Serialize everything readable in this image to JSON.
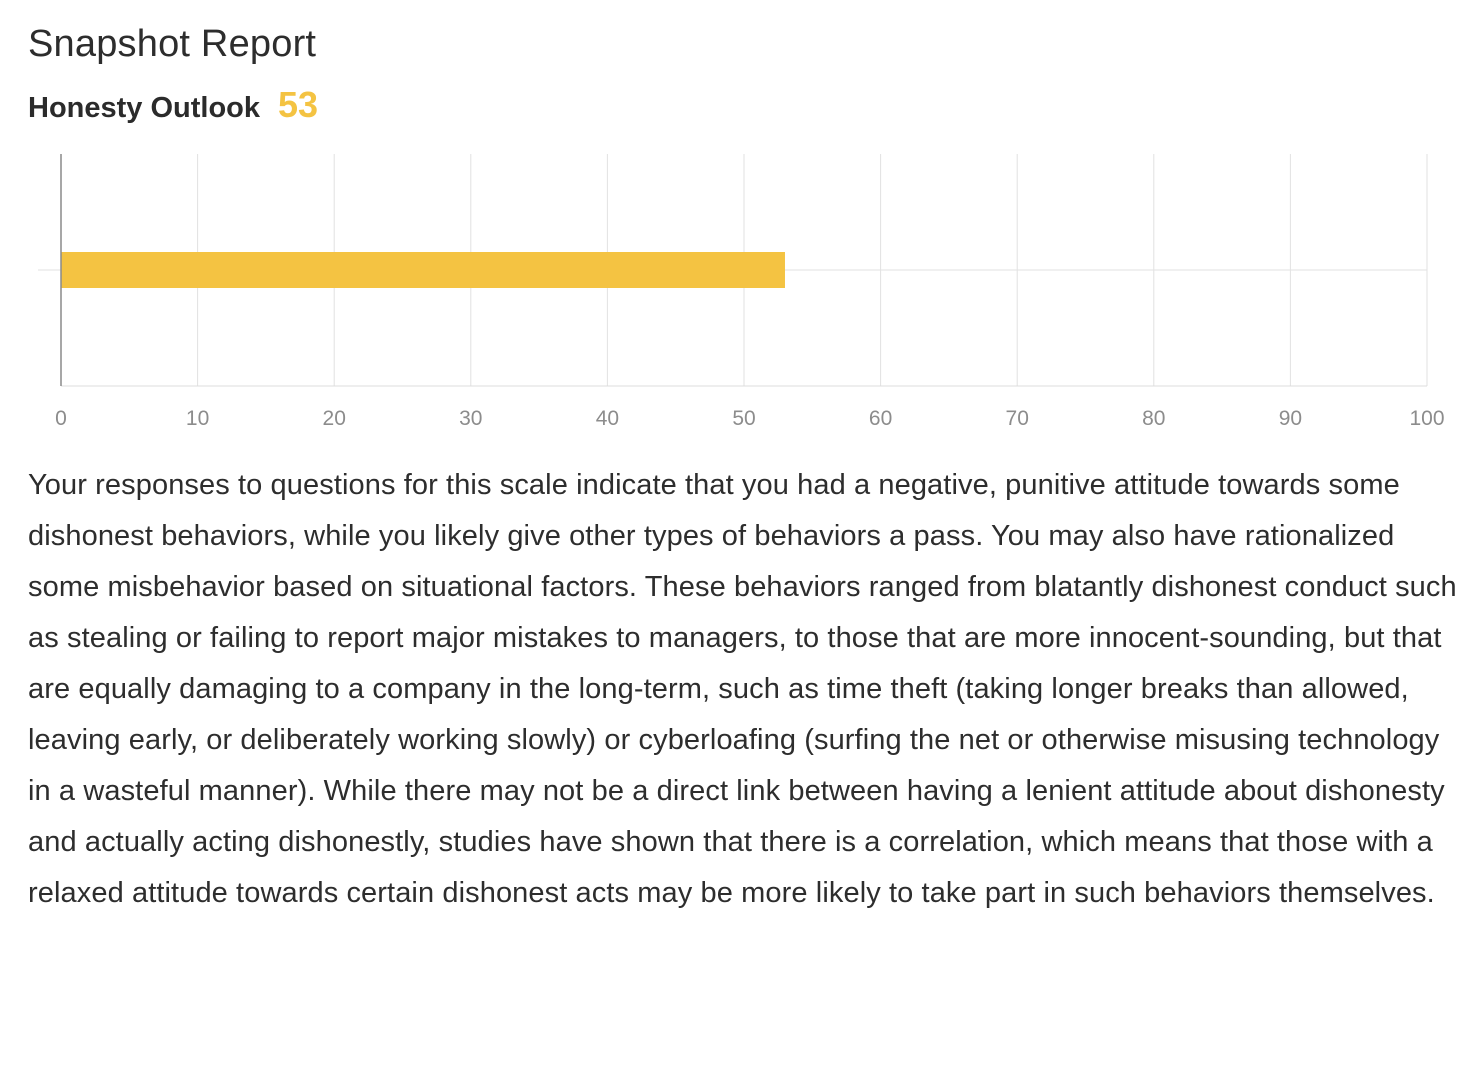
{
  "page": {
    "title": "Snapshot Report"
  },
  "scale": {
    "name": "Honesty Outlook",
    "score": "53",
    "accent_color": "#F4C342"
  },
  "chart_data": {
    "type": "bar",
    "orientation": "horizontal",
    "categories": [
      "Honesty Outlook"
    ],
    "values": [
      53
    ],
    "xlim": [
      0,
      100
    ],
    "xticks": [
      0,
      10,
      20,
      30,
      40,
      50,
      60,
      70,
      80,
      90,
      100
    ],
    "grid": true,
    "bar_color": "#F4C342"
  },
  "description": "Your responses to questions for this scale indicate that you had a negative, punitive attitude towards some dishonest behaviors, while you likely give other types of behaviors a pass. You may also have rationalized some misbehavior based on situational factors. These behaviors ranged from blatantly dishonest conduct such as stealing or failing to report major mistakes to managers, to those that are more innocent-sounding, but that are equally damaging to a company in the long-term, such as time theft (taking longer breaks than allowed, leaving early, or deliberately working slowly) or cyberloafing (surfing the net or otherwise misusing technology in a wasteful manner). While there may not be a direct link between having a lenient attitude about dishonesty and actually acting dishonestly, studies have shown that there is a correlation, which means that those with a relaxed attitude towards certain dishonest acts may be more likely to take part in such behaviors themselves."
}
